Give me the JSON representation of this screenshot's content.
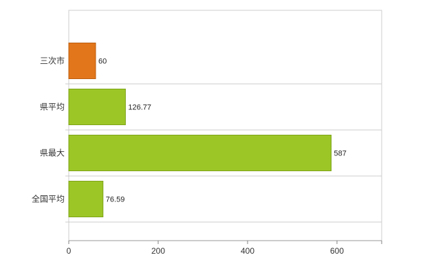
{
  "chart_data": {
    "type": "bar",
    "orientation": "horizontal",
    "title": "",
    "xlabel": "",
    "ylabel": "",
    "categories": [
      "三次市",
      "県平均",
      "県最大",
      "全国平均"
    ],
    "values": [
      60,
      126.77,
      587,
      76.59
    ],
    "value_labels": [
      "60",
      "126.77",
      "587",
      "76.59"
    ],
    "bar_fill_colors": [
      "#e2761b",
      "#9cc626",
      "#9cc626",
      "#9cc626"
    ],
    "bar_stroke_colors": [
      "#bc5d0e",
      "#7ca317",
      "#7ca317",
      "#7ca317"
    ],
    "xticks": [
      0,
      200,
      400,
      600
    ],
    "xtick_labels": [
      "0",
      "200",
      "400",
      "600"
    ],
    "xlim": [
      0,
      700
    ],
    "grid": true,
    "grid_color": "#cccccc",
    "axis_color": "#999999",
    "tick_color": "#808080",
    "text_color": "#333333",
    "value_label_color": "#222222",
    "background_color": "#ffffff",
    "legend_position": "none"
  }
}
